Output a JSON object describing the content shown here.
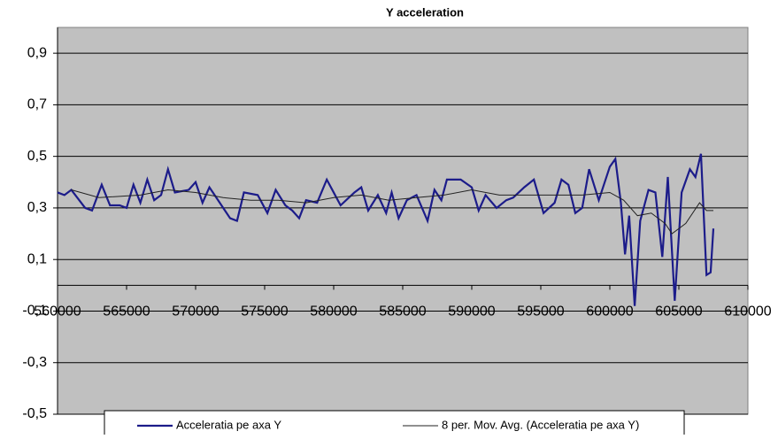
{
  "chart_data": {
    "type": "line",
    "title": "Y acceleration",
    "xlim": [
      560000,
      610000
    ],
    "xticks": [
      560000,
      565000,
      570000,
      575000,
      580000,
      585000,
      590000,
      595000,
      600000,
      605000,
      610000
    ],
    "ylim": [
      -0.5,
      1.0
    ],
    "yticks": [
      {
        "value": -0.5,
        "label": "-0,5"
      },
      {
        "value": -0.3,
        "label": "-0,3"
      },
      {
        "value": -0.1,
        "label": "-0,1"
      },
      {
        "value": 0.1,
        "label": "0,1"
      },
      {
        "value": 0.3,
        "label": "0,3"
      },
      {
        "value": 0.5,
        "label": "0,5"
      },
      {
        "value": 0.7,
        "label": "0,7"
      },
      {
        "value": 0.9,
        "label": "0,9"
      }
    ],
    "grid": true,
    "legend": "bottom",
    "series": [
      {
        "name": "Acceleratia pe axa Y",
        "color": "#1c1c8a",
        "x": [
          560000,
          560500,
          561000,
          562000,
          562500,
          563200,
          563800,
          564500,
          565000,
          565500,
          566000,
          566500,
          567000,
          567500,
          568000,
          568500,
          569500,
          570000,
          570500,
          571000,
          571500,
          572500,
          573000,
          573500,
          574500,
          575200,
          575800,
          576500,
          577000,
          577500,
          578000,
          578800,
          579500,
          580000,
          580500,
          581500,
          582000,
          582500,
          583200,
          583800,
          584200,
          584700,
          585300,
          586000,
          586800,
          587300,
          587800,
          588200,
          589200,
          590000,
          590500,
          591000,
          591800,
          592500,
          593000,
          593800,
          594500,
          595200,
          596000,
          596500,
          597000,
          597500,
          598000,
          598500,
          599200,
          600000,
          600400,
          600800,
          601100,
          601400,
          601800,
          602200,
          602800,
          603300,
          603800,
          604200,
          604700,
          605200,
          605800,
          606200,
          606600,
          607000,
          607300,
          607500
        ],
        "values": [
          0.36,
          0.35,
          0.37,
          0.3,
          0.29,
          0.39,
          0.31,
          0.31,
          0.3,
          0.39,
          0.32,
          0.41,
          0.33,
          0.35,
          0.45,
          0.36,
          0.37,
          0.4,
          0.32,
          0.38,
          0.34,
          0.26,
          0.25,
          0.36,
          0.35,
          0.28,
          0.37,
          0.31,
          0.29,
          0.26,
          0.33,
          0.32,
          0.41,
          0.36,
          0.31,
          0.36,
          0.38,
          0.29,
          0.35,
          0.28,
          0.36,
          0.26,
          0.33,
          0.35,
          0.25,
          0.37,
          0.33,
          0.41,
          0.41,
          0.38,
          0.29,
          0.35,
          0.3,
          0.33,
          0.34,
          0.38,
          0.41,
          0.28,
          0.32,
          0.41,
          0.39,
          0.28,
          0.3,
          0.45,
          0.33,
          0.46,
          0.49,
          0.32,
          0.12,
          0.27,
          -0.08,
          0.25,
          0.37,
          0.36,
          0.11,
          0.42,
          -0.06,
          0.36,
          0.45,
          0.42,
          0.51,
          0.04,
          0.05,
          0.22
        ]
      },
      {
        "name": "8 per. Mov. Avg. (Acceleratia pe axa Y)",
        "color": "#222222",
        "x": [
          561000,
          563000,
          566000,
          568000,
          570000,
          572000,
          574000,
          576000,
          578000,
          580000,
          582000,
          584000,
          586000,
          588000,
          590000,
          592000,
          594000,
          596000,
          598000,
          600000,
          601000,
          602000,
          603000,
          604000,
          604500,
          605500,
          606500,
          607000,
          607500
        ],
        "values": [
          0.37,
          0.34,
          0.35,
          0.37,
          0.36,
          0.34,
          0.33,
          0.33,
          0.32,
          0.34,
          0.35,
          0.33,
          0.34,
          0.35,
          0.37,
          0.35,
          0.35,
          0.35,
          0.35,
          0.36,
          0.33,
          0.27,
          0.28,
          0.24,
          0.2,
          0.24,
          0.32,
          0.29,
          0.29
        ]
      }
    ]
  }
}
